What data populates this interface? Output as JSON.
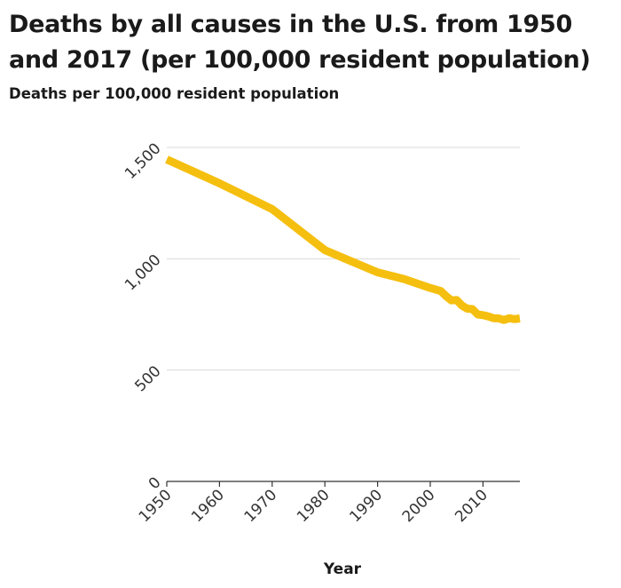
{
  "chart_data": {
    "type": "line",
    "title": "Deaths by all causes in the U.S. from 1950 and 2017 (per 100,000 resident population)",
    "subtitle": "Deaths per 100,000 resident population",
    "xlabel": "Year",
    "ylabel": "",
    "xlim": [
      1950,
      2017
    ],
    "ylim": [
      0,
      1500
    ],
    "x_ticks": [
      1950,
      1960,
      1970,
      1980,
      1990,
      2000,
      2010
    ],
    "y_ticks": [
      0,
      500,
      1000,
      1500
    ],
    "y_tick_labels": [
      "0",
      "500",
      "1,000",
      "1,500"
    ],
    "grid": true,
    "line_color": "#f5bf0f",
    "series": [
      {
        "x": [
          1950,
          1960,
          1970,
          1980,
          1990,
          1995,
          2000,
          2002,
          2003,
          2004,
          2005,
          2006,
          2007,
          2008,
          2009,
          2010,
          2011,
          2012,
          2013,
          2014,
          2015,
          2016,
          2017
        ],
        "values": [
          1446,
          1339,
          1223,
          1039,
          939,
          909,
          869,
          855,
          832,
          813,
          815,
          790,
          776,
          774,
          750,
          747,
          741,
          733,
          732,
          725,
          733,
          729,
          732
        ]
      }
    ]
  }
}
